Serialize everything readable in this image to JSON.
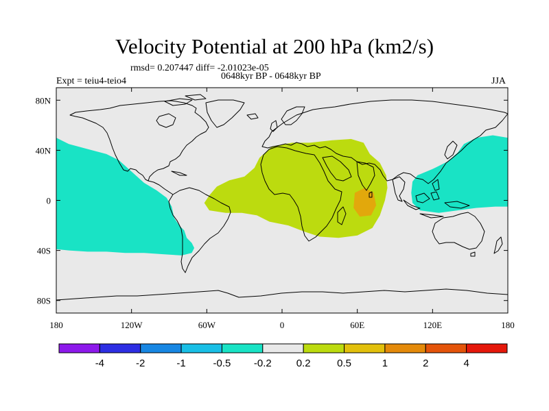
{
  "title": "Velocity Potential at 200 hPa (km2/s)",
  "stats": "rmsd= 0.207447 diff= -2.01023e-05",
  "experiment": "Expt = teiu4-teio4",
  "period": "0648kyr BP - 0648kyr BP",
  "season": "JJA",
  "map": {
    "projection": "cylindrical equidistant",
    "lon_range": [
      -180,
      180
    ],
    "lat_range": [
      -90,
      90
    ],
    "background_color": "#e9e9e9",
    "coastline_color": "#000000",
    "lon_ticks": [
      {
        "value": -180,
        "label": "180"
      },
      {
        "value": -120,
        "label": "120W"
      },
      {
        "value": -60,
        "label": "60W"
      },
      {
        "value": 0,
        "label": "0"
      },
      {
        "value": 60,
        "label": "60E"
      },
      {
        "value": 120,
        "label": "120E"
      },
      {
        "value": 180,
        "label": "180"
      }
    ],
    "lat_ticks": [
      {
        "value": 80,
        "label": "80N"
      },
      {
        "value": 40,
        "label": "40N"
      },
      {
        "value": 0,
        "label": "0"
      },
      {
        "value": -40,
        "label": "40S"
      },
      {
        "value": -80,
        "label": "80S"
      }
    ],
    "regions": [
      {
        "name": "eastern-pacific-negative",
        "band": "-0.5 to -0.2",
        "color": "#19e3c5",
        "lonlat": [
          [
            -180,
            50
          ],
          [
            -170,
            45
          ],
          [
            -155,
            41
          ],
          [
            -140,
            37
          ],
          [
            -130,
            32
          ],
          [
            -120,
            23
          ],
          [
            -110,
            14
          ],
          [
            -100,
            8
          ],
          [
            -92,
            2
          ],
          [
            -88,
            -5
          ],
          [
            -86,
            -14
          ],
          [
            -82,
            -20
          ],
          [
            -78,
            -24
          ],
          [
            -76,
            -30
          ],
          [
            -72,
            -34
          ],
          [
            -70,
            -38
          ],
          [
            -72,
            -42
          ],
          [
            -80,
            -44
          ],
          [
            -95,
            -43
          ],
          [
            -110,
            -42
          ],
          [
            -125,
            -42
          ],
          [
            -140,
            -41
          ],
          [
            -155,
            -41
          ],
          [
            -170,
            -40
          ],
          [
            -180,
            -39
          ]
        ]
      },
      {
        "name": "indian-ocean-africa-positive",
        "band": "0.2 to 0.5",
        "color": "#bcdb0f",
        "lonlat": [
          [
            -62,
            -2
          ],
          [
            -58,
            4
          ],
          [
            -52,
            11
          ],
          [
            -42,
            16
          ],
          [
            -30,
            19
          ],
          [
            -22,
            26
          ],
          [
            -18,
            34
          ],
          [
            -8,
            43
          ],
          [
            8,
            46
          ],
          [
            22,
            46
          ],
          [
            40,
            48
          ],
          [
            55,
            49
          ],
          [
            65,
            46
          ],
          [
            70,
            37
          ],
          [
            78,
            30
          ],
          [
            83,
            20
          ],
          [
            84,
            10
          ],
          [
            82,
            0
          ],
          [
            78,
            -12
          ],
          [
            72,
            -22
          ],
          [
            60,
            -28
          ],
          [
            45,
            -30
          ],
          [
            30,
            -29
          ],
          [
            18,
            -25
          ],
          [
            5,
            -20
          ],
          [
            -10,
            -17
          ],
          [
            -20,
            -12
          ],
          [
            -32,
            -10
          ],
          [
            -45,
            -10
          ],
          [
            -58,
            -8
          ]
        ]
      },
      {
        "name": "east-africa-maximum",
        "band": "0.5 to 1",
        "color": "#e2a80c",
        "lonlat": [
          [
            58,
            6
          ],
          [
            66,
            10
          ],
          [
            73,
            6
          ],
          [
            75,
            -4
          ],
          [
            71,
            -12
          ],
          [
            62,
            -13
          ],
          [
            57,
            -6
          ]
        ]
      },
      {
        "name": "maritime-continent-negative",
        "band": "-0.5 to -0.2",
        "color": "#19e3c5",
        "lonlat": [
          [
            180,
            50
          ],
          [
            168,
            52
          ],
          [
            155,
            50
          ],
          [
            145,
            45
          ],
          [
            140,
            38
          ],
          [
            132,
            31
          ],
          [
            120,
            25
          ],
          [
            108,
            20
          ],
          [
            104,
            15
          ],
          [
            103,
            6
          ],
          [
            104,
            -2
          ],
          [
            110,
            -8
          ],
          [
            125,
            -10
          ],
          [
            140,
            -8
          ],
          [
            155,
            -6
          ],
          [
            170,
            -5
          ],
          [
            180,
            -5
          ]
        ]
      }
    ]
  },
  "colorbar": {
    "colors": [
      "#8d19eb",
      "#2d2ee3",
      "#1887e3",
      "#19bfe6",
      "#19e3c5",
      "#e9e9e9",
      "#bcdb0f",
      "#e2c00c",
      "#e48a0a",
      "#e4540a",
      "#e5180b"
    ],
    "labels": [
      "-4",
      "-2",
      "-1",
      "-0.5",
      "-0.2",
      "0.2",
      "0.5",
      "1",
      "2",
      "4"
    ]
  }
}
